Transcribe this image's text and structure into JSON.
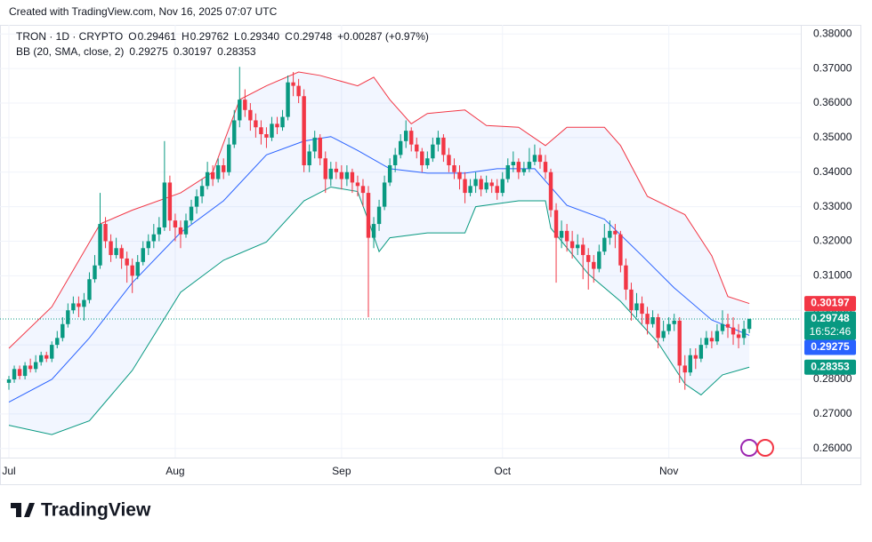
{
  "header": {
    "created": "Created with TradingView.com, Nov 16, 2025 07:07 UTC"
  },
  "chart_data": {
    "type": "candlestick",
    "symbol": "TRON · 1D · CRYPTO",
    "legend": {
      "o_label": "O",
      "o": "0.29461",
      "h_label": "H",
      "h": "0.29762",
      "l_label": "L",
      "l": "0.29340",
      "c_label": "C",
      "c": "0.29748",
      "change": "+0.00287 (+0.97%)"
    },
    "indicator": "BB (20, SMA, close, 2)",
    "countdown": "16:52:46",
    "up_color": "#089981",
    "down_color": "#f23645",
    "grid": true,
    "xlim": [
      -1.66,
      147.6
    ],
    "xticks": [
      {
        "value": 0,
        "label": "Jul"
      },
      {
        "value": 31,
        "label": "Aug"
      },
      {
        "value": 62,
        "label": "Sep"
      },
      {
        "value": 92,
        "label": "Oct"
      },
      {
        "value": 123,
        "label": "Nov"
      }
    ],
    "ylim": [
      0.25735,
      0.38265
    ],
    "yticks": [
      {
        "value": 0.26,
        "label": "0.26000"
      },
      {
        "value": 0.27,
        "label": "0.27000"
      },
      {
        "value": 0.28,
        "label": "0.28000"
      },
      {
        "value": 0.29,
        "label": "0.29000"
      },
      {
        "value": 0.3,
        "label": "0.30000"
      },
      {
        "value": 0.31,
        "label": "0.31000"
      },
      {
        "value": 0.32,
        "label": "0.32000"
      },
      {
        "value": 0.33,
        "label": "0.33000"
      },
      {
        "value": 0.34,
        "label": "0.34000"
      },
      {
        "value": 0.35,
        "label": "0.35000"
      },
      {
        "value": 0.36,
        "label": "0.36000"
      },
      {
        "value": 0.37,
        "label": "0.37000"
      },
      {
        "value": 0.38,
        "label": "0.38000"
      }
    ],
    "ohlc": [
      [
        0.279,
        0.281,
        0.277,
        0.28
      ],
      [
        0.28,
        0.284,
        0.279,
        0.283
      ],
      [
        0.283,
        0.284,
        0.28,
        0.281
      ],
      [
        0.281,
        0.285,
        0.28,
        0.284
      ],
      [
        0.284,
        0.286,
        0.282,
        0.283
      ],
      [
        0.283,
        0.287,
        0.282,
        0.285
      ],
      [
        0.285,
        0.288,
        0.284,
        0.287
      ],
      [
        0.287,
        0.288,
        0.285,
        0.286
      ],
      [
        0.286,
        0.291,
        0.285,
        0.29
      ],
      [
        0.29,
        0.294,
        0.289,
        0.292
      ],
      [
        0.292,
        0.298,
        0.291,
        0.296
      ],
      [
        0.296,
        0.302,
        0.295,
        0.3
      ],
      [
        0.3,
        0.304,
        0.299,
        0.302
      ],
      [
        0.302,
        0.304,
        0.298,
        0.301
      ],
      [
        0.301,
        0.305,
        0.297,
        0.303
      ],
      [
        0.303,
        0.311,
        0.302,
        0.309
      ],
      [
        0.309,
        0.316,
        0.308,
        0.313
      ],
      [
        0.313,
        0.334,
        0.312,
        0.325
      ],
      [
        0.325,
        0.327,
        0.318,
        0.32
      ],
      [
        0.32,
        0.322,
        0.314,
        0.316
      ],
      [
        0.316,
        0.321,
        0.315,
        0.318
      ],
      [
        0.318,
        0.319,
        0.312,
        0.315
      ],
      [
        0.315,
        0.317,
        0.308,
        0.313
      ],
      [
        0.313,
        0.315,
        0.305,
        0.31
      ],
      [
        0.31,
        0.316,
        0.309,
        0.314
      ],
      [
        0.314,
        0.32,
        0.313,
        0.318
      ],
      [
        0.318,
        0.322,
        0.316,
        0.32
      ],
      [
        0.32,
        0.325,
        0.318,
        0.322
      ],
      [
        0.322,
        0.327,
        0.32,
        0.324
      ],
      [
        0.324,
        0.349,
        0.323,
        0.337
      ],
      [
        0.337,
        0.339,
        0.323,
        0.326
      ],
      [
        0.326,
        0.328,
        0.32,
        0.324
      ],
      [
        0.324,
        0.326,
        0.318,
        0.322
      ],
      [
        0.322,
        0.328,
        0.321,
        0.326
      ],
      [
        0.326,
        0.332,
        0.325,
        0.33
      ],
      [
        0.33,
        0.335,
        0.328,
        0.333
      ],
      [
        0.333,
        0.338,
        0.331,
        0.336
      ],
      [
        0.336,
        0.343,
        0.335,
        0.34
      ],
      [
        0.34,
        0.342,
        0.336,
        0.338
      ],
      [
        0.338,
        0.344,
        0.337,
        0.342
      ],
      [
        0.342,
        0.344,
        0.338,
        0.34
      ],
      [
        0.34,
        0.35,
        0.339,
        0.348
      ],
      [
        0.348,
        0.358,
        0.347,
        0.355
      ],
      [
        0.355,
        0.3705,
        0.353,
        0.361
      ],
      [
        0.361,
        0.364,
        0.356,
        0.358
      ],
      [
        0.358,
        0.36,
        0.352,
        0.355
      ],
      [
        0.355,
        0.357,
        0.35,
        0.353
      ],
      [
        0.353,
        0.355,
        0.348,
        0.351
      ],
      [
        0.351,
        0.353,
        0.347,
        0.35
      ],
      [
        0.35,
        0.356,
        0.349,
        0.354
      ],
      [
        0.354,
        0.356,
        0.351,
        0.353
      ],
      [
        0.353,
        0.358,
        0.352,
        0.356
      ],
      [
        0.356,
        0.368,
        0.355,
        0.366
      ],
      [
        0.366,
        0.369,
        0.362,
        0.365
      ],
      [
        0.365,
        0.367,
        0.36,
        0.362
      ],
      [
        0.362,
        0.364,
        0.34,
        0.342
      ],
      [
        0.342,
        0.348,
        0.34,
        0.346
      ],
      [
        0.346,
        0.352,
        0.344,
        0.35
      ],
      [
        0.35,
        0.351,
        0.342,
        0.344
      ],
      [
        0.344,
        0.346,
        0.334,
        0.338
      ],
      [
        0.338,
        0.343,
        0.336,
        0.341
      ],
      [
        0.341,
        0.343,
        0.338,
        0.34
      ],
      [
        0.34,
        0.342,
        0.335,
        0.338
      ],
      [
        0.338,
        0.342,
        0.336,
        0.34
      ],
      [
        0.34,
        0.341,
        0.334,
        0.337
      ],
      [
        0.337,
        0.339,
        0.333,
        0.336
      ],
      [
        0.336,
        0.338,
        0.33,
        0.334
      ],
      [
        0.334,
        0.336,
        0.298,
        0.321
      ],
      [
        0.321,
        0.327,
        0.318,
        0.325
      ],
      [
        0.325,
        0.332,
        0.323,
        0.33
      ],
      [
        0.33,
        0.339,
        0.329,
        0.337
      ],
      [
        0.337,
        0.344,
        0.336,
        0.342
      ],
      [
        0.342,
        0.347,
        0.34,
        0.345
      ],
      [
        0.345,
        0.351,
        0.344,
        0.349
      ],
      [
        0.349,
        0.355,
        0.347,
        0.352
      ],
      [
        0.352,
        0.353,
        0.346,
        0.348
      ],
      [
        0.348,
        0.35,
        0.344,
        0.346
      ],
      [
        0.346,
        0.347,
        0.34,
        0.342
      ],
      [
        0.342,
        0.346,
        0.341,
        0.344
      ],
      [
        0.344,
        0.35,
        0.343,
        0.348
      ],
      [
        0.348,
        0.352,
        0.346,
        0.35
      ],
      [
        0.35,
        0.351,
        0.343,
        0.345
      ],
      [
        0.345,
        0.347,
        0.34,
        0.342
      ],
      [
        0.342,
        0.344,
        0.338,
        0.34
      ],
      [
        0.34,
        0.342,
        0.335,
        0.338
      ],
      [
        0.338,
        0.34,
        0.331,
        0.334
      ],
      [
        0.334,
        0.338,
        0.333,
        0.336
      ],
      [
        0.336,
        0.34,
        0.334,
        0.338
      ],
      [
        0.338,
        0.339,
        0.333,
        0.335
      ],
      [
        0.335,
        0.339,
        0.334,
        0.337
      ],
      [
        0.337,
        0.338,
        0.334,
        0.336
      ],
      [
        0.336,
        0.338,
        0.332,
        0.334
      ],
      [
        0.334,
        0.34,
        0.333,
        0.338
      ],
      [
        0.338,
        0.344,
        0.337,
        0.342
      ],
      [
        0.342,
        0.346,
        0.34,
        0.343
      ],
      [
        0.343,
        0.344,
        0.338,
        0.34
      ],
      [
        0.34,
        0.343,
        0.339,
        0.341
      ],
      [
        0.341,
        0.347,
        0.34,
        0.343
      ],
      [
        0.343,
        0.348,
        0.342,
        0.345
      ],
      [
        0.345,
        0.347,
        0.341,
        0.343
      ],
      [
        0.343,
        0.345,
        0.338,
        0.34
      ],
      [
        0.34,
        0.341,
        0.327,
        0.329
      ],
      [
        0.329,
        0.331,
        0.308,
        0.321
      ],
      [
        0.321,
        0.326,
        0.318,
        0.323
      ],
      [
        0.323,
        0.325,
        0.317,
        0.32
      ],
      [
        0.32,
        0.323,
        0.315,
        0.318
      ],
      [
        0.318,
        0.322,
        0.316,
        0.319
      ],
      [
        0.319,
        0.321,
        0.309,
        0.316
      ],
      [
        0.316,
        0.318,
        0.306,
        0.314
      ],
      [
        0.314,
        0.316,
        0.308,
        0.312
      ],
      [
        0.312,
        0.319,
        0.311,
        0.317
      ],
      [
        0.317,
        0.325,
        0.316,
        0.321
      ],
      [
        0.321,
        0.326,
        0.319,
        0.323
      ],
      [
        0.323,
        0.325,
        0.318,
        0.322
      ],
      [
        0.322,
        0.323,
        0.311,
        0.313
      ],
      [
        0.313,
        0.315,
        0.303,
        0.306
      ],
      [
        0.306,
        0.308,
        0.297,
        0.3
      ],
      [
        0.3,
        0.305,
        0.298,
        0.302
      ],
      [
        0.302,
        0.304,
        0.296,
        0.299
      ],
      [
        0.299,
        0.301,
        0.293,
        0.296
      ],
      [
        0.296,
        0.3,
        0.295,
        0.298
      ],
      [
        0.298,
        0.299,
        0.289,
        0.292
      ],
      [
        0.292,
        0.297,
        0.291,
        0.294
      ],
      [
        0.294,
        0.298,
        0.293,
        0.296
      ],
      [
        0.296,
        0.299,
        0.294,
        0.297
      ],
      [
        0.297,
        0.298,
        0.279,
        0.284
      ],
      [
        0.284,
        0.287,
        0.277,
        0.282
      ],
      [
        0.282,
        0.289,
        0.281,
        0.287
      ],
      [
        0.287,
        0.289,
        0.283,
        0.286
      ],
      [
        0.286,
        0.292,
        0.285,
        0.29
      ],
      [
        0.29,
        0.294,
        0.289,
        0.292
      ],
      [
        0.292,
        0.294,
        0.289,
        0.291
      ],
      [
        0.291,
        0.296,
        0.29,
        0.294
      ],
      [
        0.294,
        0.3,
        0.293,
        0.296
      ],
      [
        0.296,
        0.299,
        0.292,
        0.295
      ],
      [
        0.295,
        0.298,
        0.29,
        0.293
      ],
      [
        0.293,
        0.296,
        0.289,
        0.292
      ],
      [
        0.292,
        0.297,
        0.29,
        0.29461
      ],
      [
        0.29461,
        0.29762,
        0.2934,
        0.29748
      ]
    ],
    "bands": [
      {
        "color": "#2962ff",
        "x": [
          0,
          8,
          15,
          23,
          32,
          40,
          48,
          55,
          60,
          65,
          71,
          78,
          85,
          91,
          98,
          104,
          111,
          118,
          124,
          131,
          138
        ],
        "values": [
          0.2734,
          0.28,
          0.292,
          0.308,
          0.3225,
          0.3317,
          0.345,
          0.349,
          0.3503,
          0.3463,
          0.341,
          0.3397,
          0.3397,
          0.341,
          0.341,
          0.3304,
          0.3264,
          0.3158,
          0.3065,
          0.2972,
          0.29275
        ]
      },
      {
        "color": "#f23645",
        "x": [
          0,
          8,
          17,
          23,
          32,
          38,
          43,
          48,
          54,
          58,
          65,
          68,
          71,
          75,
          78,
          85,
          89,
          95,
          100,
          104,
          111,
          114,
          119,
          126,
          131,
          134,
          138
        ],
        "values": [
          0.289,
          0.301,
          0.325,
          0.329,
          0.334,
          0.34,
          0.361,
          0.365,
          0.369,
          0.368,
          0.365,
          0.3675,
          0.361,
          0.354,
          0.357,
          0.358,
          0.3535,
          0.353,
          0.3477,
          0.353,
          0.353,
          0.3477,
          0.333,
          0.3277,
          0.3158,
          0.304,
          0.30197
        ]
      },
      {
        "color": "#089981",
        "x": [
          0,
          8,
          15,
          23,
          32,
          40,
          48,
          55,
          60,
          65,
          67,
          69,
          71,
          78,
          85,
          87,
          95,
          100,
          101,
          108,
          114,
          121,
          126,
          129,
          133,
          138
        ],
        "values": [
          0.2667,
          0.264,
          0.268,
          0.2826,
          0.3052,
          0.3145,
          0.3198,
          0.3317,
          0.3357,
          0.3344,
          0.326,
          0.317,
          0.321,
          0.3224,
          0.3224,
          0.33,
          0.3317,
          0.3317,
          0.3238,
          0.3105,
          0.3026,
          0.2906,
          0.2787,
          0.2755,
          0.2813,
          0.28353
        ]
      }
    ],
    "band_fill": "#2962ff"
  },
  "footer": {
    "logo": "TradingView"
  }
}
